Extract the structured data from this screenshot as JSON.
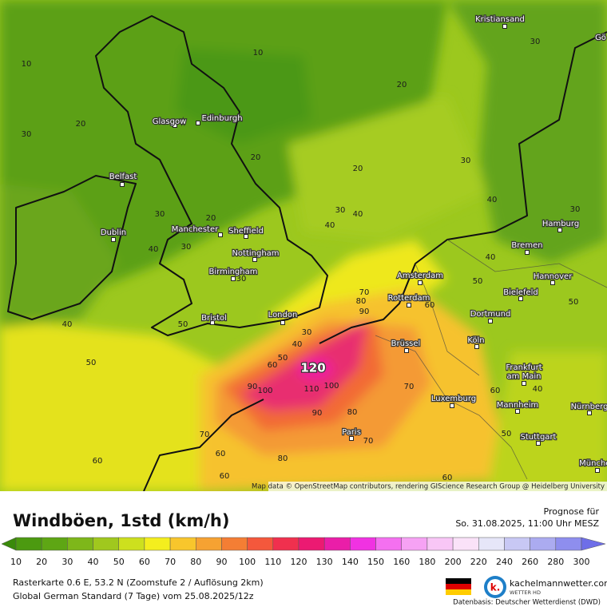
{
  "map": {
    "cities": [
      "Kristiansand",
      "Gö",
      "Glasgow",
      "Edinburgh",
      "Belfast",
      "Dublin",
      "Manchester",
      "Sheffield",
      "Nottingham",
      "Birmingham",
      "Bristol",
      "London",
      "Amsterdam",
      "Rotterdam",
      "Brüssel",
      "Hamburg",
      "Bremen",
      "Hannover",
      "Bielefeld",
      "Dortmund",
      "Köln",
      "Frankfurt",
      "am Main",
      "Mannheim",
      "Luxemburg",
      "Nürnberg",
      "Paris",
      "Stuttgart",
      "München"
    ],
    "contour_labels": [
      10,
      10,
      20,
      30,
      20,
      30,
      30,
      20,
      20,
      30,
      20,
      30,
      40,
      40,
      40,
      30,
      40,
      40,
      50,
      30,
      30,
      30,
      40,
      50,
      40,
      50,
      50,
      60,
      70,
      80,
      90,
      60,
      50,
      120,
      100,
      90,
      110,
      100,
      90,
      80,
      70,
      70,
      60,
      80,
      70,
      60,
      40,
      50,
      60,
      60,
      60
    ],
    "attribution": "Map data © OpenStreetMap contributors, rendering GIScience Research Group @ Heidelberg University"
  },
  "legend": {
    "title": "Windböen, 1std (km/h)",
    "ticks": [
      10,
      20,
      30,
      40,
      50,
      60,
      70,
      80,
      90,
      100,
      110,
      120,
      130,
      140,
      150,
      160,
      180,
      200,
      220,
      240,
      260,
      280,
      300
    ],
    "colors": [
      "#3a8a0a",
      "#4c9a10",
      "#5ea614",
      "#7eb71a",
      "#a0c81e",
      "#cde01e",
      "#f4ee1e",
      "#f8c62c",
      "#f6a232",
      "#f47e34",
      "#f4583c",
      "#f0304e",
      "#ec1a72",
      "#ea1ea8",
      "#f032e2",
      "#f470f0",
      "#f6a2f4",
      "#f8c6f6",
      "#fae2f8",
      "#e6e6f8",
      "#c8c8f4",
      "#ababf0",
      "#8e8eee",
      "#6e6ee8"
    ]
  },
  "header": {
    "forecast_label": "Prognose für",
    "forecast_time": "So. 31.08.2025, 11:00 Uhr MESZ"
  },
  "footer": {
    "line1": "Rasterkarte 0.6 E, 53.2 N (Zoomstufe 2 / Auflösung 2km)",
    "line2": "Global German Standard (7 Tage) vom  25.08.2025/12z",
    "brand": "kachelmannwetter.com",
    "brand_sub": "WETTER HD",
    "source": "Datenbasis: Deutscher Wetterdienst (DWD)"
  }
}
